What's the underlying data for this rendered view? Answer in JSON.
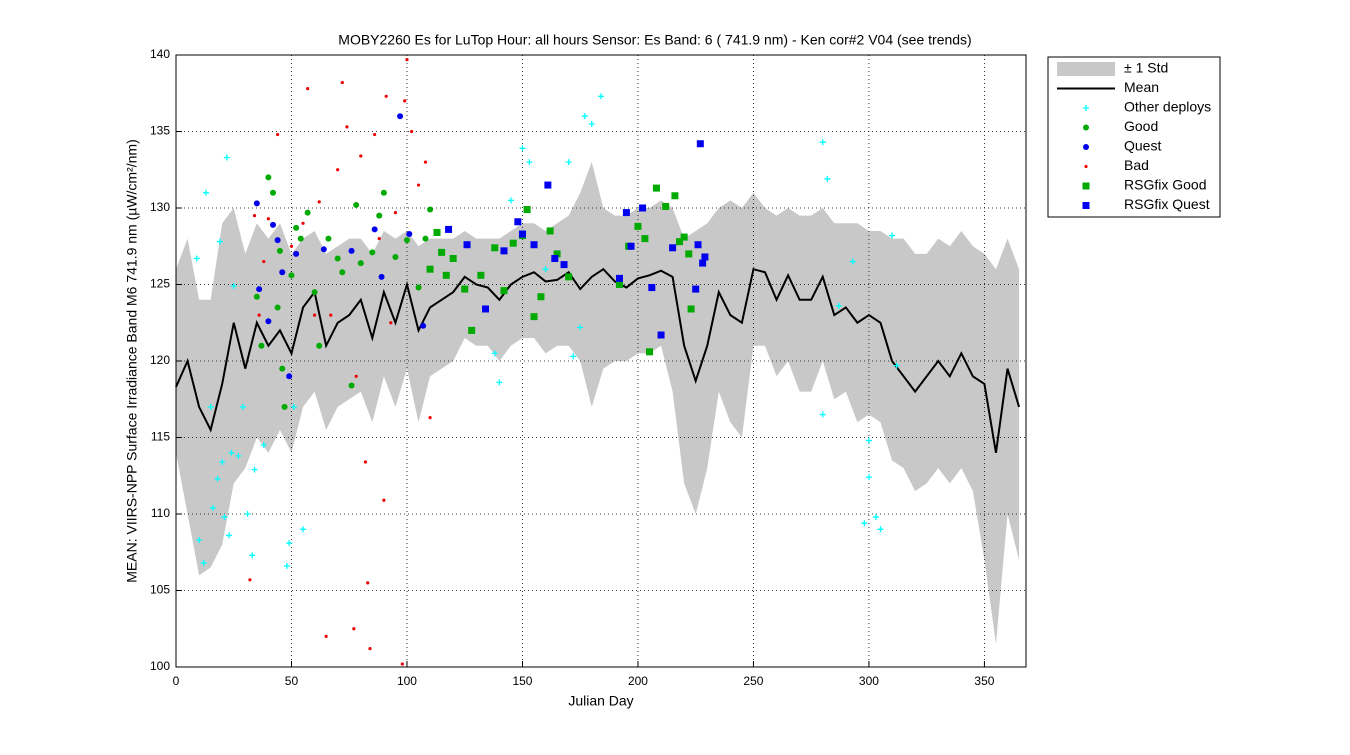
{
  "chart_data": {
    "type": "scatter",
    "title": "MOBY2260   Es for LuTop  Hour: all hours  Sensor: Es Band: 6 ( 741.9 nm)  - Ken cor#2 V04 (see trends)",
    "xlabel": "Julian Day",
    "ylabel": "MEAN: VIIRS-NPP Surface Irradiance Band M6 741.9 nm (µW/cm²/nm)",
    "xlim": [
      0,
      368
    ],
    "ylim": [
      100,
      140
    ],
    "xticks": [
      0,
      50,
      100,
      150,
      200,
      250,
      300,
      350
    ],
    "yticks": [
      100,
      105,
      110,
      115,
      120,
      125,
      130,
      135,
      140
    ],
    "grid": true,
    "legend": "outside-right",
    "x": [
      0,
      5,
      10,
      15,
      20,
      25,
      30,
      35,
      40,
      45,
      50,
      55,
      60,
      65,
      70,
      75,
      80,
      85,
      90,
      95,
      100,
      105,
      110,
      115,
      120,
      125,
      130,
      135,
      140,
      145,
      150,
      155,
      160,
      165,
      170,
      175,
      180,
      185,
      190,
      195,
      200,
      205,
      210,
      215,
      220,
      225,
      230,
      235,
      240,
      245,
      250,
      255,
      260,
      265,
      270,
      275,
      280,
      285,
      290,
      295,
      300,
      305,
      310,
      315,
      320,
      325,
      330,
      335,
      340,
      345,
      350,
      355,
      360,
      365
    ],
    "band": {
      "name": "± 1 Std",
      "color": "#c8c8c8",
      "upper": [
        126,
        128,
        124,
        124,
        129,
        130,
        127,
        129,
        128,
        129,
        127,
        128,
        128.5,
        127,
        127.5,
        128,
        128,
        127,
        128.5,
        128,
        128.5,
        127.5,
        128,
        128,
        128,
        128.5,
        128,
        128,
        128,
        128.5,
        129,
        129,
        128.5,
        129,
        129.5,
        131,
        133,
        130,
        129.5,
        129.5,
        130,
        130,
        130.5,
        130,
        128,
        128.5,
        129,
        130,
        130.5,
        130,
        131,
        130,
        129.5,
        130,
        129.5,
        129.5,
        130,
        129,
        129,
        129,
        128.5,
        128.5,
        128,
        128,
        127,
        127,
        128,
        127.5,
        128.5,
        127.5,
        127,
        126,
        128,
        126
      ],
      "lower": [
        114,
        110,
        106,
        106.5,
        108,
        112,
        113,
        115,
        114,
        115.5,
        114,
        117,
        118,
        115.5,
        117,
        117.5,
        118,
        116,
        119,
        117,
        119.5,
        116,
        119,
        119.5,
        120,
        121.5,
        121,
        121,
        120,
        121,
        121.5,
        121.5,
        120.5,
        121,
        121,
        120,
        117,
        119.5,
        120,
        120,
        120.5,
        120.5,
        121,
        118,
        112,
        110,
        113,
        118,
        116,
        115,
        121,
        121,
        119,
        120,
        118,
        118,
        120,
        117.5,
        118,
        116,
        116.5,
        116,
        113.5,
        113,
        111.5,
        112,
        113,
        112,
        113,
        111.5,
        107,
        101.5,
        110,
        107
      ]
    },
    "mean": {
      "name": "Mean",
      "color": "#000000",
      "values": [
        118.3,
        120,
        117,
        115.5,
        118.5,
        122.5,
        119.5,
        122.5,
        121,
        122,
        120.5,
        123.5,
        124.5,
        121,
        122.5,
        123,
        124,
        121.5,
        124.5,
        122.5,
        125,
        122,
        123.5,
        124,
        124.5,
        125.5,
        125,
        124.8,
        124,
        125,
        125.5,
        125.8,
        125.2,
        125.3,
        125.8,
        124.7,
        125.5,
        126,
        125.2,
        124.8,
        125.4,
        125.6,
        125.9,
        125.5,
        121,
        118.7,
        121,
        124.5,
        123,
        122.5,
        126,
        125.8,
        124,
        125.6,
        124,
        124,
        125.5,
        123,
        123.5,
        122.5,
        123,
        122.5,
        120,
        119,
        118,
        119,
        120,
        119,
        120.5,
        119,
        118.5,
        114,
        119.5,
        117
      ]
    },
    "series": [
      {
        "name": "Other deploys",
        "color": "#00ffff",
        "marker": "plus",
        "x": [
          9,
          10,
          12,
          13,
          15,
          16,
          18,
          19,
          20,
          21,
          22,
          23,
          24,
          25,
          27,
          29,
          31,
          33,
          34,
          38,
          48,
          49,
          51,
          55,
          145,
          150,
          153,
          160,
          170,
          177,
          180,
          184,
          140,
          138,
          172,
          175,
          280,
          282,
          280,
          298,
          300,
          303,
          305,
          300,
          310,
          312,
          293,
          287
        ],
        "values": [
          126.7,
          108.3,
          106.8,
          131,
          117,
          110.4,
          112.3,
          127.8,
          113.4,
          109.8,
          133.3,
          108.6,
          114,
          124.9,
          113.8,
          117,
          110,
          107.3,
          112.9,
          114.5,
          106.6,
          108.1,
          117,
          109,
          130.5,
          133.9,
          133,
          126,
          133,
          136,
          135.5,
          137.3,
          118.6,
          120.5,
          120.3,
          122.2,
          134.3,
          131.9,
          116.5,
          109.4,
          112.4,
          109.8,
          109,
          114.8,
          128.2,
          119.7,
          126.5,
          123.6
        ]
      },
      {
        "name": "Good",
        "color": "#00aa00",
        "marker": "circle",
        "x": [
          35,
          37,
          40,
          42,
          44,
          46,
          47,
          50,
          54,
          57,
          62,
          66,
          70,
          72,
          76,
          78,
          85,
          90,
          95,
          100,
          105,
          108,
          110,
          45,
          52,
          60,
          80,
          88
        ],
        "values": [
          124.2,
          121,
          132,
          131,
          123.5,
          119.5,
          117,
          125.6,
          128,
          129.7,
          121,
          128,
          126.7,
          125.8,
          118.4,
          130.2,
          127.1,
          131,
          126.8,
          127.9,
          124.8,
          128,
          129.9,
          127.2,
          128.7,
          124.5,
          126.4,
          129.5
        ]
      },
      {
        "name": "Quest",
        "color": "#0000ee",
        "marker": "circle",
        "x": [
          35,
          36,
          40,
          42,
          44,
          46,
          49,
          52,
          64,
          76,
          86,
          97,
          101,
          107,
          89
        ],
        "values": [
          130.3,
          124.7,
          122.6,
          128.9,
          127.9,
          125.8,
          119,
          127,
          127.3,
          127.2,
          128.6,
          136,
          128.3,
          122.3,
          125.5
        ]
      },
      {
        "name": "Bad",
        "color": "#ee0000",
        "marker": "dot",
        "x": [
          32,
          34,
          36,
          38,
          40,
          44,
          50,
          55,
          57,
          60,
          62,
          65,
          70,
          72,
          74,
          77,
          80,
          82,
          83,
          84,
          86,
          88,
          90,
          91,
          95,
          98,
          99,
          100,
          102,
          105,
          110,
          108,
          78,
          67,
          93
        ],
        "values": [
          105.7,
          129.5,
          123,
          126.5,
          129.3,
          134.8,
          127.5,
          129,
          137.8,
          123,
          130.4,
          102,
          132.5,
          138.2,
          135.3,
          102.5,
          133.4,
          113.4,
          105.5,
          101.2,
          134.8,
          128,
          110.9,
          137.3,
          129.7,
          100.2,
          137,
          139.7,
          135,
          131.5,
          116.3,
          133,
          119,
          123,
          122.5
        ]
      },
      {
        "name": "RSGfix Good",
        "color": "#00aa00",
        "marker": "square",
        "x": [
          110,
          113,
          115,
          117,
          120,
          125,
          128,
          132,
          138,
          142,
          146,
          150,
          152,
          155,
          158,
          162,
          165,
          170,
          192,
          196,
          200,
          203,
          205,
          208,
          212,
          216,
          218,
          220,
          222,
          223
        ],
        "values": [
          126,
          128.4,
          127.1,
          125.6,
          126.7,
          124.7,
          122,
          125.6,
          127.4,
          124.6,
          127.7,
          128.2,
          129.9,
          122.9,
          124.2,
          128.5,
          127,
          125.5,
          125,
          127.5,
          128.8,
          128,
          120.6,
          131.3,
          130.1,
          130.8,
          127.8,
          128.1,
          127,
          123.4
        ]
      },
      {
        "name": "RSGfix Quest",
        "color": "#0000ee",
        "marker": "square",
        "x": [
          118,
          126,
          134,
          142,
          148,
          150,
          155,
          161,
          164,
          168,
          192,
          195,
          197,
          202,
          206,
          210,
          215,
          225,
          226,
          227,
          228,
          229
        ],
        "values": [
          128.6,
          127.6,
          123.4,
          127.2,
          129.1,
          128.3,
          127.6,
          131.5,
          126.7,
          126.3,
          125.4,
          129.7,
          127.5,
          130,
          124.8,
          121.7,
          127.4,
          124.7,
          127.6,
          134.2,
          126.4,
          126.8
        ]
      }
    ]
  }
}
